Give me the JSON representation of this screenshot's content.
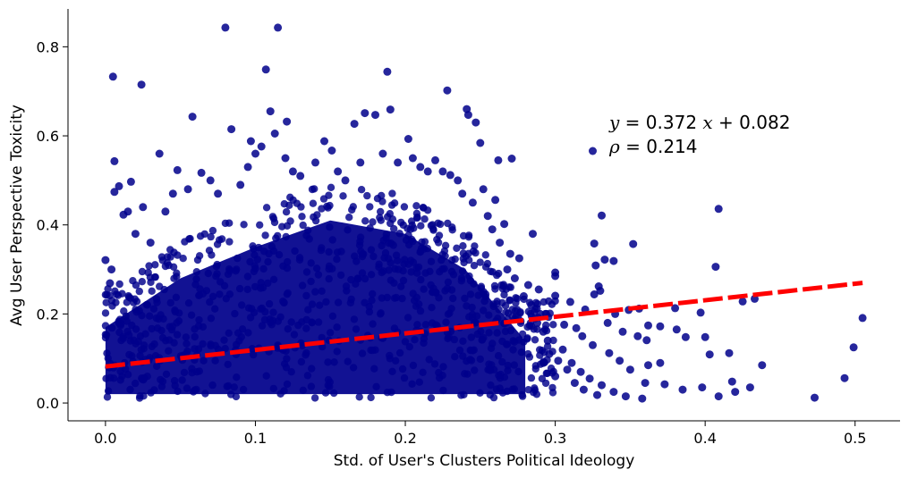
{
  "chart_data": {
    "type": "scatter",
    "title": "",
    "xlabel": "Std. of User's Clusters Political Ideology",
    "ylabel": "Avg User Perspective Toxicity",
    "xlim": [
      -0.025,
      0.53
    ],
    "ylim": [
      -0.04,
      0.885
    ],
    "x_ticks": [
      0.0,
      0.1,
      0.2,
      0.3,
      0.4,
      0.5
    ],
    "x_tick_labels": [
      "0.0",
      "0.1",
      "0.2",
      "0.3",
      "0.4",
      "0.5"
    ],
    "y_ticks": [
      0.0,
      0.2,
      0.4,
      0.6,
      0.8
    ],
    "y_tick_labels": [
      "0.0",
      "0.2",
      "0.4",
      "0.6",
      "0.8"
    ],
    "grid": false,
    "point_color": "#00008b",
    "fit_line": {
      "slope": 0.372,
      "intercept": 0.082,
      "x_range": [
        0.0,
        0.505
      ],
      "color": "#ff0000",
      "style": "dashed"
    },
    "annotation": {
      "equation_lhs": "y",
      "equation_rhs": " = 0.372 ",
      "equation_var": "x",
      "equation_tail": " + 0.082",
      "rho_symbol": "ρ",
      "rho_text": " = 0.214"
    },
    "dense_region": {
      "description_points": [
        [
          0.0,
          0.02
        ],
        [
          0.0,
          0.17
        ],
        [
          0.05,
          0.28
        ],
        [
          0.1,
          0.35
        ],
        [
          0.15,
          0.41
        ],
        [
          0.2,
          0.38
        ],
        [
          0.24,
          0.3
        ],
        [
          0.28,
          0.14
        ],
        [
          0.28,
          0.02
        ]
      ]
    },
    "points": [
      [
        0.08,
        0.843
      ],
      [
        0.115,
        0.843
      ],
      [
        0.005,
        0.733
      ],
      [
        0.024,
        0.715
      ],
      [
        0.107,
        0.749
      ],
      [
        0.188,
        0.744
      ],
      [
        0.228,
        0.702
      ],
      [
        0.058,
        0.643
      ],
      [
        0.11,
        0.655
      ],
      [
        0.121,
        0.632
      ],
      [
        0.166,
        0.627
      ],
      [
        0.173,
        0.651
      ],
      [
        0.18,
        0.647
      ],
      [
        0.19,
        0.659
      ],
      [
        0.202,
        0.593
      ],
      [
        0.241,
        0.66
      ],
      [
        0.242,
        0.647
      ],
      [
        0.247,
        0.63
      ],
      [
        0.25,
        0.584
      ],
      [
        0.084,
        0.615
      ],
      [
        0.097,
        0.588
      ],
      [
        0.104,
        0.576
      ],
      [
        0.113,
        0.605
      ],
      [
        0.146,
        0.588
      ],
      [
        0.151,
        0.567
      ],
      [
        0.036,
        0.56
      ],
      [
        0.006,
        0.543
      ],
      [
        0.325,
        0.566
      ],
      [
        0.271,
        0.549
      ],
      [
        0.262,
        0.545
      ],
      [
        0.009,
        0.487
      ],
      [
        0.006,
        0.474
      ],
      [
        0.017,
        0.497
      ],
      [
        0.048,
        0.523
      ],
      [
        0.064,
        0.517
      ],
      [
        0.23,
        0.512
      ],
      [
        0.252,
        0.48
      ],
      [
        0.26,
        0.456
      ],
      [
        0.266,
        0.402
      ],
      [
        0.285,
        0.38
      ],
      [
        0.331,
        0.421
      ],
      [
        0.409,
        0.436
      ],
      [
        0.326,
        0.358
      ],
      [
        0.352,
        0.357
      ],
      [
        0.327,
        0.309
      ],
      [
        0.333,
        0.322
      ],
      [
        0.339,
        0.319
      ],
      [
        0.407,
        0.306
      ],
      [
        0.3,
        0.293
      ],
      [
        0.3,
        0.285
      ],
      [
        0.329,
        0.262
      ],
      [
        0.33,
        0.252
      ],
      [
        0.326,
        0.244
      ],
      [
        0.3,
        0.241
      ],
      [
        0.31,
        0.227
      ],
      [
        0.32,
        0.21
      ],
      [
        0.34,
        0.2
      ],
      [
        0.349,
        0.209
      ],
      [
        0.356,
        0.212
      ],
      [
        0.38,
        0.213
      ],
      [
        0.397,
        0.203
      ],
      [
        0.433,
        0.234
      ],
      [
        0.505,
        0.191
      ],
      [
        0.425,
        0.228
      ],
      [
        0.362,
        0.174
      ],
      [
        0.37,
        0.172
      ],
      [
        0.381,
        0.165
      ],
      [
        0.335,
        0.18
      ],
      [
        0.345,
        0.16
      ],
      [
        0.355,
        0.15
      ],
      [
        0.361,
        0.141
      ],
      [
        0.387,
        0.148
      ],
      [
        0.4,
        0.148
      ],
      [
        0.403,
        0.109
      ],
      [
        0.416,
        0.112
      ],
      [
        0.438,
        0.085
      ],
      [
        0.499,
        0.125
      ],
      [
        0.493,
        0.056
      ],
      [
        0.473,
        0.012
      ],
      [
        0.418,
        0.048
      ],
      [
        0.43,
        0.035
      ],
      [
        0.42,
        0.025
      ],
      [
        0.409,
        0.015
      ],
      [
        0.398,
        0.035
      ],
      [
        0.385,
        0.03
      ],
      [
        0.373,
        0.042
      ],
      [
        0.36,
        0.045
      ],
      [
        0.35,
        0.075
      ],
      [
        0.362,
        0.085
      ],
      [
        0.37,
        0.09
      ],
      [
        0.343,
        0.095
      ],
      [
        0.336,
        0.112
      ],
      [
        0.325,
        0.13
      ],
      [
        0.318,
        0.15
      ],
      [
        0.314,
        0.168
      ],
      [
        0.306,
        0.176
      ],
      [
        0.305,
        0.12
      ],
      [
        0.311,
        0.09
      ],
      [
        0.317,
        0.07
      ],
      [
        0.323,
        0.055
      ],
      [
        0.331,
        0.04
      ],
      [
        0.339,
        0.025
      ],
      [
        0.347,
        0.015
      ],
      [
        0.358,
        0.01
      ],
      [
        0.3,
        0.06
      ],
      [
        0.292,
        0.09
      ],
      [
        0.295,
        0.14
      ],
      [
        0.29,
        0.2
      ],
      [
        0.289,
        0.255
      ],
      [
        0.282,
        0.265
      ],
      [
        0.276,
        0.325
      ],
      [
        0.27,
        0.335
      ],
      [
        0.0,
        0.321
      ],
      [
        0.003,
        0.269
      ],
      [
        0.004,
        0.3
      ],
      [
        0.012,
        0.423
      ],
      [
        0.015,
        0.43
      ],
      [
        0.02,
        0.38
      ],
      [
        0.025,
        0.44
      ],
      [
        0.03,
        0.36
      ],
      [
        0.04,
        0.43
      ],
      [
        0.045,
        0.47
      ],
      [
        0.055,
        0.48
      ],
      [
        0.07,
        0.5
      ],
      [
        0.075,
        0.47
      ],
      [
        0.09,
        0.49
      ],
      [
        0.095,
        0.53
      ],
      [
        0.1,
        0.56
      ],
      [
        0.12,
        0.55
      ],
      [
        0.125,
        0.52
      ],
      [
        0.13,
        0.51
      ],
      [
        0.14,
        0.54
      ],
      [
        0.155,
        0.52
      ],
      [
        0.16,
        0.5
      ],
      [
        0.17,
        0.54
      ],
      [
        0.185,
        0.56
      ],
      [
        0.195,
        0.54
      ],
      [
        0.205,
        0.55
      ],
      [
        0.21,
        0.53
      ],
      [
        0.215,
        0.52
      ],
      [
        0.22,
        0.545
      ],
      [
        0.225,
        0.52
      ],
      [
        0.235,
        0.5
      ],
      [
        0.238,
        0.47
      ],
      [
        0.245,
        0.45
      ],
      [
        0.255,
        0.42
      ],
      [
        0.258,
        0.39
      ],
      [
        0.263,
        0.36
      ],
      [
        0.268,
        0.3
      ],
      [
        0.273,
        0.28
      ],
      [
        0.279,
        0.24
      ],
      [
        0.284,
        0.22
      ],
      [
        0.288,
        0.18
      ],
      [
        0.292,
        0.16
      ],
      [
        0.296,
        0.11
      ],
      [
        0.302,
        0.095
      ],
      [
        0.308,
        0.075
      ],
      [
        0.313,
        0.045
      ],
      [
        0.319,
        0.03
      ],
      [
        0.328,
        0.018
      ]
    ]
  }
}
